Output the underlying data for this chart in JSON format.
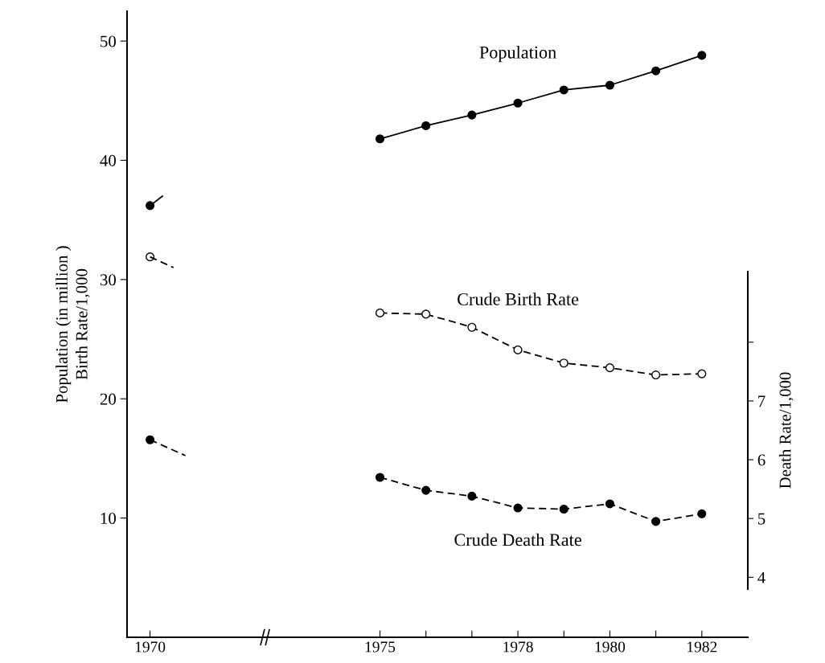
{
  "chart_data": {
    "type": "line",
    "ylabel": "Population (in million )\nBirth Rate/1,000",
    "y2label": "Death Rate/1,000",
    "xlim": [
      1969.5,
      1983
    ],
    "xticks": [
      1970,
      1975,
      {
        "value": 1976,
        "label": null
      },
      {
        "value": 1977,
        "label": null
      },
      1978,
      {
        "value": 1979,
        "label": null
      },
      1980,
      {
        "value": 1981,
        "label": null
      },
      1982
    ],
    "ylim": [
      0,
      52.5
    ],
    "yticks": [
      10,
      20,
      30,
      40,
      50
    ],
    "y2lim": [
      3.8,
      9.2
    ],
    "y2ticks": [
      4,
      5,
      6,
      7,
      {
        "value": 8,
        "label": null
      }
    ],
    "series": [
      {
        "name": "Population",
        "color": "#000000",
        "marker": "circle",
        "line_style": "solid",
        "x": [
          1970,
          1972,
          1975,
          1976,
          1977,
          1978,
          1979,
          1980,
          1981,
          1982
        ],
        "values": [
          36.2,
          null,
          41.8,
          42.9,
          43.8,
          44.8,
          45.9,
          46.3,
          47.5,
          48.8
        ]
      },
      {
        "color": "#000000",
        "marker": "none",
        "line_style": "solid",
        "x": [
          1970,
          1970.27
        ],
        "values": [
          36.2,
          37.0
        ]
      },
      {
        "name": "Crude Birth Rate",
        "color": "#000000",
        "marker": "open circle",
        "line_style": "dashed",
        "x": [
          1970,
          1972,
          1975,
          1976,
          1977,
          1978,
          1979,
          1980,
          1981,
          1982
        ],
        "values": [
          31.9,
          null,
          27.2,
          27.1,
          26.0,
          24.1,
          23.0,
          22.6,
          22.0,
          22.1
        ]
      },
      {
        "color": "#000000",
        "marker": "none",
        "line_style": "dashed",
        "x": [
          1970,
          1970.51
        ],
        "values": [
          31.9,
          31.0
        ]
      },
      {
        "name": "Crude Death Rate",
        "axis": "y2",
        "color": "#000000",
        "marker": "circle",
        "line_style": "dashed",
        "x": [
          1970,
          1972,
          1975,
          1976,
          1977,
          1978,
          1979,
          1980,
          1981,
          1982
        ],
        "values": [
          6.34,
          null,
          5.7,
          5.48,
          5.38,
          5.18,
          5.16,
          5.25,
          4.95,
          5.08
        ]
      },
      {
        "axis": "y2",
        "color": "#000000",
        "marker": "none",
        "line_style": "dashed",
        "x": [
          1970,
          1970.77
        ],
        "values": [
          6.34,
          6.07
        ]
      }
    ]
  }
}
